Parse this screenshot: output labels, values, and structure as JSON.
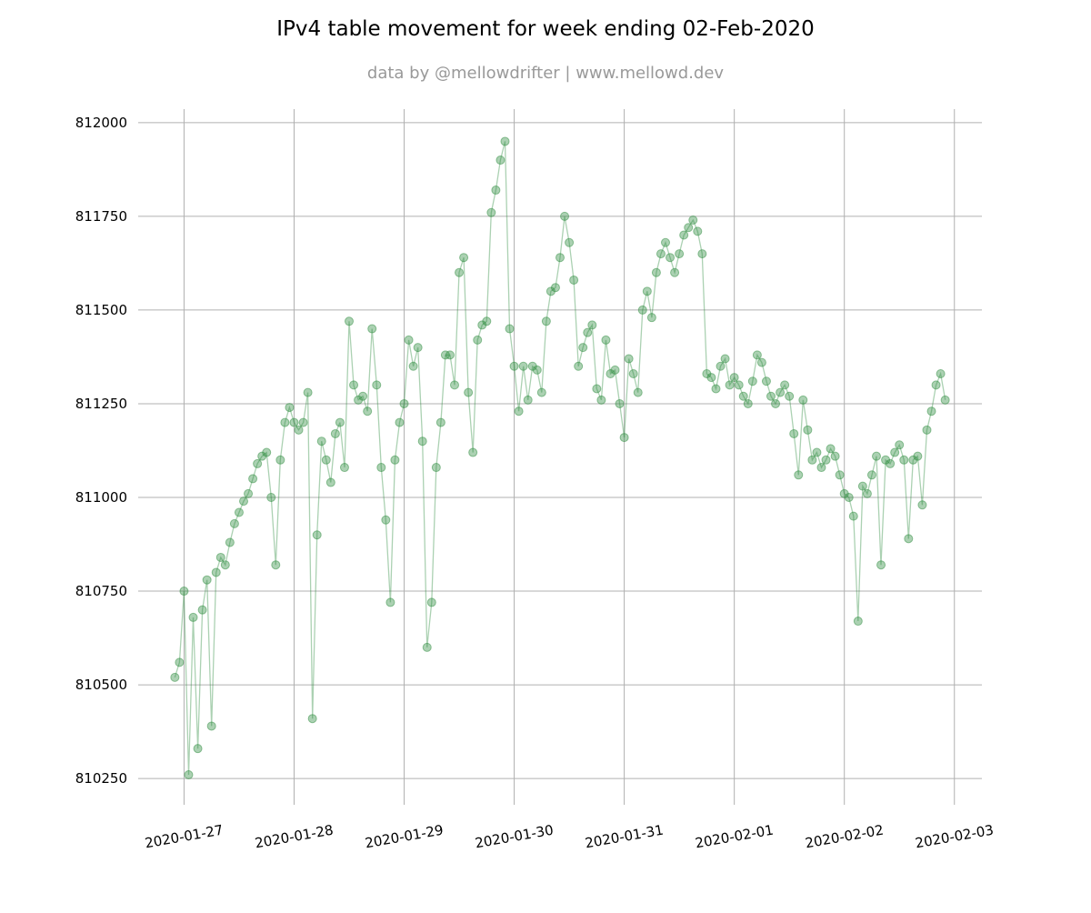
{
  "chart_data": {
    "type": "line",
    "title": "IPv4 table movement for week ending 02-Feb-2020",
    "subtitle": "data by @mellowdrifter | www.mellowd.dev",
    "x": [
      "2020-01-26 22:00",
      "2020-01-26 23:00",
      "2020-01-27 00:00",
      "2020-01-27 01:00",
      "2020-01-27 02:00",
      "2020-01-27 03:00",
      "2020-01-27 04:00",
      "2020-01-27 05:00",
      "2020-01-27 06:00",
      "2020-01-27 07:00",
      "2020-01-27 08:00",
      "2020-01-27 09:00",
      "2020-01-27 10:00",
      "2020-01-27 11:00",
      "2020-01-27 12:00",
      "2020-01-27 13:00",
      "2020-01-27 14:00",
      "2020-01-27 15:00",
      "2020-01-27 16:00",
      "2020-01-27 17:00",
      "2020-01-27 18:00",
      "2020-01-27 19:00",
      "2020-01-27 20:00",
      "2020-01-27 21:00",
      "2020-01-27 22:00",
      "2020-01-27 23:00",
      "2020-01-28 00:00",
      "2020-01-28 01:00",
      "2020-01-28 02:00",
      "2020-01-28 03:00",
      "2020-01-28 04:00",
      "2020-01-28 05:00",
      "2020-01-28 06:00",
      "2020-01-28 07:00",
      "2020-01-28 08:00",
      "2020-01-28 09:00",
      "2020-01-28 10:00",
      "2020-01-28 11:00",
      "2020-01-28 12:00",
      "2020-01-28 13:00",
      "2020-01-28 14:00",
      "2020-01-28 15:00",
      "2020-01-28 16:00",
      "2020-01-28 17:00",
      "2020-01-28 18:00",
      "2020-01-28 19:00",
      "2020-01-28 20:00",
      "2020-01-28 21:00",
      "2020-01-28 22:00",
      "2020-01-28 23:00",
      "2020-01-29 00:00",
      "2020-01-29 01:00",
      "2020-01-29 02:00",
      "2020-01-29 03:00",
      "2020-01-29 04:00",
      "2020-01-29 05:00",
      "2020-01-29 06:00",
      "2020-01-29 07:00",
      "2020-01-29 08:00",
      "2020-01-29 09:00",
      "2020-01-29 10:00",
      "2020-01-29 11:00",
      "2020-01-29 12:00",
      "2020-01-29 13:00",
      "2020-01-29 14:00",
      "2020-01-29 15:00",
      "2020-01-29 16:00",
      "2020-01-29 17:00",
      "2020-01-29 18:00",
      "2020-01-29 19:00",
      "2020-01-29 20:00",
      "2020-01-29 21:00",
      "2020-01-29 22:00",
      "2020-01-29 23:00",
      "2020-01-30 00:00",
      "2020-01-30 01:00",
      "2020-01-30 02:00",
      "2020-01-30 03:00",
      "2020-01-30 04:00",
      "2020-01-30 05:00",
      "2020-01-30 06:00",
      "2020-01-30 07:00",
      "2020-01-30 08:00",
      "2020-01-30 09:00",
      "2020-01-30 10:00",
      "2020-01-30 11:00",
      "2020-01-30 12:00",
      "2020-01-30 13:00",
      "2020-01-30 14:00",
      "2020-01-30 15:00",
      "2020-01-30 16:00",
      "2020-01-30 17:00",
      "2020-01-30 18:00",
      "2020-01-30 19:00",
      "2020-01-30 20:00",
      "2020-01-30 21:00",
      "2020-01-30 22:00",
      "2020-01-30 23:00",
      "2020-01-31 00:00",
      "2020-01-31 01:00",
      "2020-01-31 02:00",
      "2020-01-31 03:00",
      "2020-01-31 04:00",
      "2020-01-31 05:00",
      "2020-01-31 06:00",
      "2020-01-31 07:00",
      "2020-01-31 08:00",
      "2020-01-31 09:00",
      "2020-01-31 10:00",
      "2020-01-31 11:00",
      "2020-01-31 12:00",
      "2020-01-31 13:00",
      "2020-01-31 14:00",
      "2020-01-31 15:00",
      "2020-01-31 16:00",
      "2020-01-31 17:00",
      "2020-01-31 18:00",
      "2020-01-31 19:00",
      "2020-01-31 20:00",
      "2020-01-31 21:00",
      "2020-01-31 22:00",
      "2020-01-31 23:00",
      "2020-02-01 00:00",
      "2020-02-01 01:00",
      "2020-02-01 02:00",
      "2020-02-01 03:00",
      "2020-02-01 04:00",
      "2020-02-01 05:00",
      "2020-02-01 06:00",
      "2020-02-01 07:00",
      "2020-02-01 08:00",
      "2020-02-01 09:00",
      "2020-02-01 10:00",
      "2020-02-01 11:00",
      "2020-02-01 12:00",
      "2020-02-01 13:00",
      "2020-02-01 14:00",
      "2020-02-01 15:00",
      "2020-02-01 16:00",
      "2020-02-01 17:00",
      "2020-02-01 18:00",
      "2020-02-01 19:00",
      "2020-02-01 20:00",
      "2020-02-01 21:00",
      "2020-02-01 22:00",
      "2020-02-01 23:00",
      "2020-02-02 00:00",
      "2020-02-02 01:00",
      "2020-02-02 02:00",
      "2020-02-02 03:00",
      "2020-02-02 04:00",
      "2020-02-02 05:00",
      "2020-02-02 06:00",
      "2020-02-02 07:00",
      "2020-02-02 08:00",
      "2020-02-02 09:00",
      "2020-02-02 10:00",
      "2020-02-02 11:00",
      "2020-02-02 12:00",
      "2020-02-02 13:00",
      "2020-02-02 14:00",
      "2020-02-02 15:00",
      "2020-02-02 16:00",
      "2020-02-02 17:00",
      "2020-02-02 18:00",
      "2020-02-02 19:00",
      "2020-02-02 20:00",
      "2020-02-02 21:00",
      "2020-02-02 22:00"
    ],
    "values": [
      810520,
      810560,
      810750,
      810260,
      810680,
      810330,
      810700,
      810780,
      810390,
      810800,
      810840,
      810820,
      810880,
      810930,
      810960,
      810990,
      811010,
      811050,
      811090,
      811110,
      811120,
      811000,
      810820,
      811100,
      811200,
      811240,
      811200,
      811180,
      811200,
      811280,
      810410,
      810900,
      811150,
      811100,
      811040,
      811170,
      811200,
      811080,
      811470,
      811300,
      811260,
      811270,
      811230,
      811450,
      811300,
      811080,
      810940,
      810720,
      811100,
      811200,
      811250,
      811420,
      811350,
      811400,
      811150,
      810600,
      810720,
      811080,
      811200,
      811380,
      811380,
      811300,
      811600,
      811640,
      811280,
      811120,
      811420,
      811460,
      811470,
      811760,
      811820,
      811900,
      811950,
      811450,
      811350,
      811230,
      811350,
      811260,
      811350,
      811340,
      811280,
      811470,
      811550,
      811560,
      811640,
      811750,
      811680,
      811580,
      811350,
      811400,
      811440,
      811460,
      811290,
      811260,
      811420,
      811330,
      811340,
      811250,
      811160,
      811370,
      811330,
      811280,
      811500,
      811550,
      811480,
      811600,
      811650,
      811680,
      811640,
      811600,
      811650,
      811700,
      811720,
      811740,
      811710,
      811650,
      811330,
      811320,
      811290,
      811350,
      811370,
      811300,
      811320,
      811300,
      811270,
      811250,
      811310,
      811380,
      811360,
      811310,
      811270,
      811250,
      811280,
      811300,
      811270,
      811170,
      811060,
      811260,
      811180,
      811100,
      811120,
      811080,
      811100,
      811130,
      811110,
      811060,
      811010,
      811000,
      810950,
      810670,
      811030,
      811010,
      811060,
      811110,
      810820,
      811100,
      811090,
      811120,
      811140,
      811100,
      810890,
      811100,
      811110,
      810980,
      811180,
      811230,
      811300,
      811330,
      811260
    ],
    "color": "#2e8b3e",
    "xlim": [
      "2020-01-26 14:00",
      "2020-02-03 06:00"
    ],
    "xticks": [
      "2020-01-27",
      "2020-01-28",
      "2020-01-29",
      "2020-01-30",
      "2020-01-31",
      "2020-02-01",
      "2020-02-02",
      "2020-02-03"
    ],
    "ylim": [
      810180,
      812036
    ],
    "yticks": [
      810250,
      810500,
      810750,
      811000,
      811250,
      811500,
      811750,
      812000
    ],
    "grid": true
  }
}
